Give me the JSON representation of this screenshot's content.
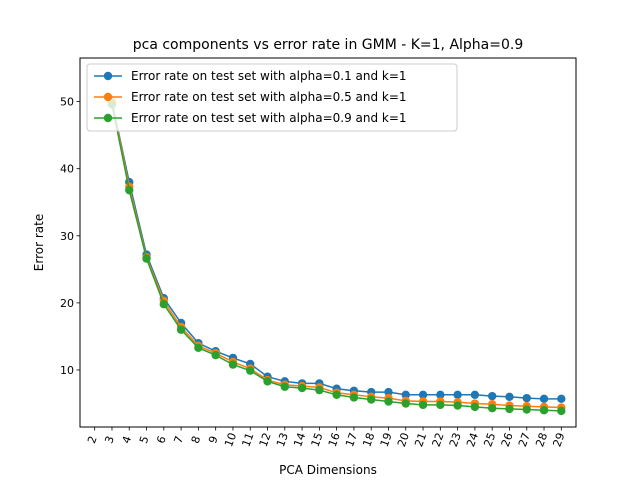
{
  "chart_data": {
    "type": "line",
    "title": "pca components vs error rate in GMM - K=1, Alpha=0.9",
    "xlabel": "PCA Dimensions",
    "ylabel": "Error rate",
    "x": [
      2,
      3,
      4,
      5,
      6,
      7,
      8,
      9,
      10,
      11,
      12,
      13,
      14,
      15,
      16,
      17,
      18,
      19,
      20,
      21,
      22,
      23,
      24,
      25,
      26,
      27,
      28,
      29
    ],
    "xticks": [
      "2",
      "3",
      "4",
      "5",
      "6",
      "7",
      "8",
      "9",
      "10",
      "11",
      "12",
      "13",
      "14",
      "15",
      "16",
      "17",
      "18",
      "19",
      "20",
      "21",
      "22",
      "23",
      "24",
      "25",
      "26",
      "27",
      "28",
      "29"
    ],
    "yticks": [
      10,
      20,
      30,
      40,
      50
    ],
    "ylim": [
      1.5,
      56.5
    ],
    "xlim": [
      1.15,
      29.85
    ],
    "grid": false,
    "legend_position": "upper-left",
    "series": [
      {
        "name": "Error rate on test set with alpha=0.1 and k=1",
        "color": "#1f77b4",
        "values": [
          null,
          50.0,
          38.0,
          27.2,
          20.7,
          17.0,
          14.0,
          12.8,
          11.8,
          10.9,
          9.0,
          8.3,
          8.0,
          8.0,
          7.2,
          6.9,
          6.7,
          6.7,
          6.3,
          6.3,
          6.3,
          6.3,
          6.3,
          6.1,
          6.0,
          5.8,
          5.7,
          5.7
        ]
      },
      {
        "name": "Error rate on test set with alpha=0.5 and k=1",
        "color": "#ff7f0e",
        "values": [
          null,
          50.0,
          37.3,
          26.8,
          20.3,
          16.4,
          13.6,
          12.5,
          11.2,
          10.2,
          8.5,
          7.8,
          7.6,
          7.4,
          6.6,
          6.3,
          6.0,
          5.8,
          5.4,
          5.3,
          5.3,
          5.2,
          5.0,
          4.9,
          4.7,
          4.6,
          4.5,
          4.4
        ]
      },
      {
        "name": "Error rate on test set with alpha=0.9 and k=1",
        "color": "#2ca02c",
        "values": [
          null,
          49.6,
          36.8,
          26.6,
          19.8,
          16.0,
          13.3,
          12.2,
          10.8,
          9.9,
          8.3,
          7.5,
          7.3,
          7.0,
          6.3,
          5.9,
          5.6,
          5.3,
          5.0,
          4.8,
          4.8,
          4.7,
          4.5,
          4.3,
          4.2,
          4.1,
          4.0,
          3.9
        ]
      }
    ]
  }
}
